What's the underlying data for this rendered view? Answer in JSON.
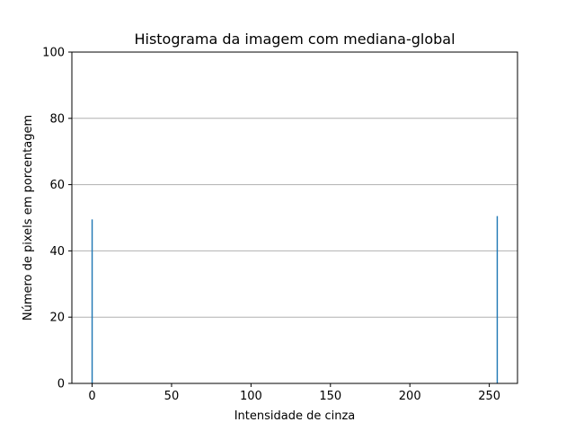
{
  "chart_data": {
    "type": "bar",
    "title": "Histograma da imagem com mediana-global",
    "xlabel": "Intensidade de cinza",
    "ylabel": "Número de pixels em porcentagem",
    "xlim": [
      -12.75,
      267.75
    ],
    "ylim": [
      0,
      100
    ],
    "xticks": [
      0,
      50,
      100,
      150,
      200,
      250
    ],
    "yticks": [
      0,
      20,
      40,
      60,
      80,
      100
    ],
    "grid": "y",
    "bar_color": "#1f77b4",
    "series": [
      {
        "name": "Histograma",
        "x": [
          0,
          255
        ],
        "values": [
          49.5,
          50.5
        ]
      }
    ]
  }
}
